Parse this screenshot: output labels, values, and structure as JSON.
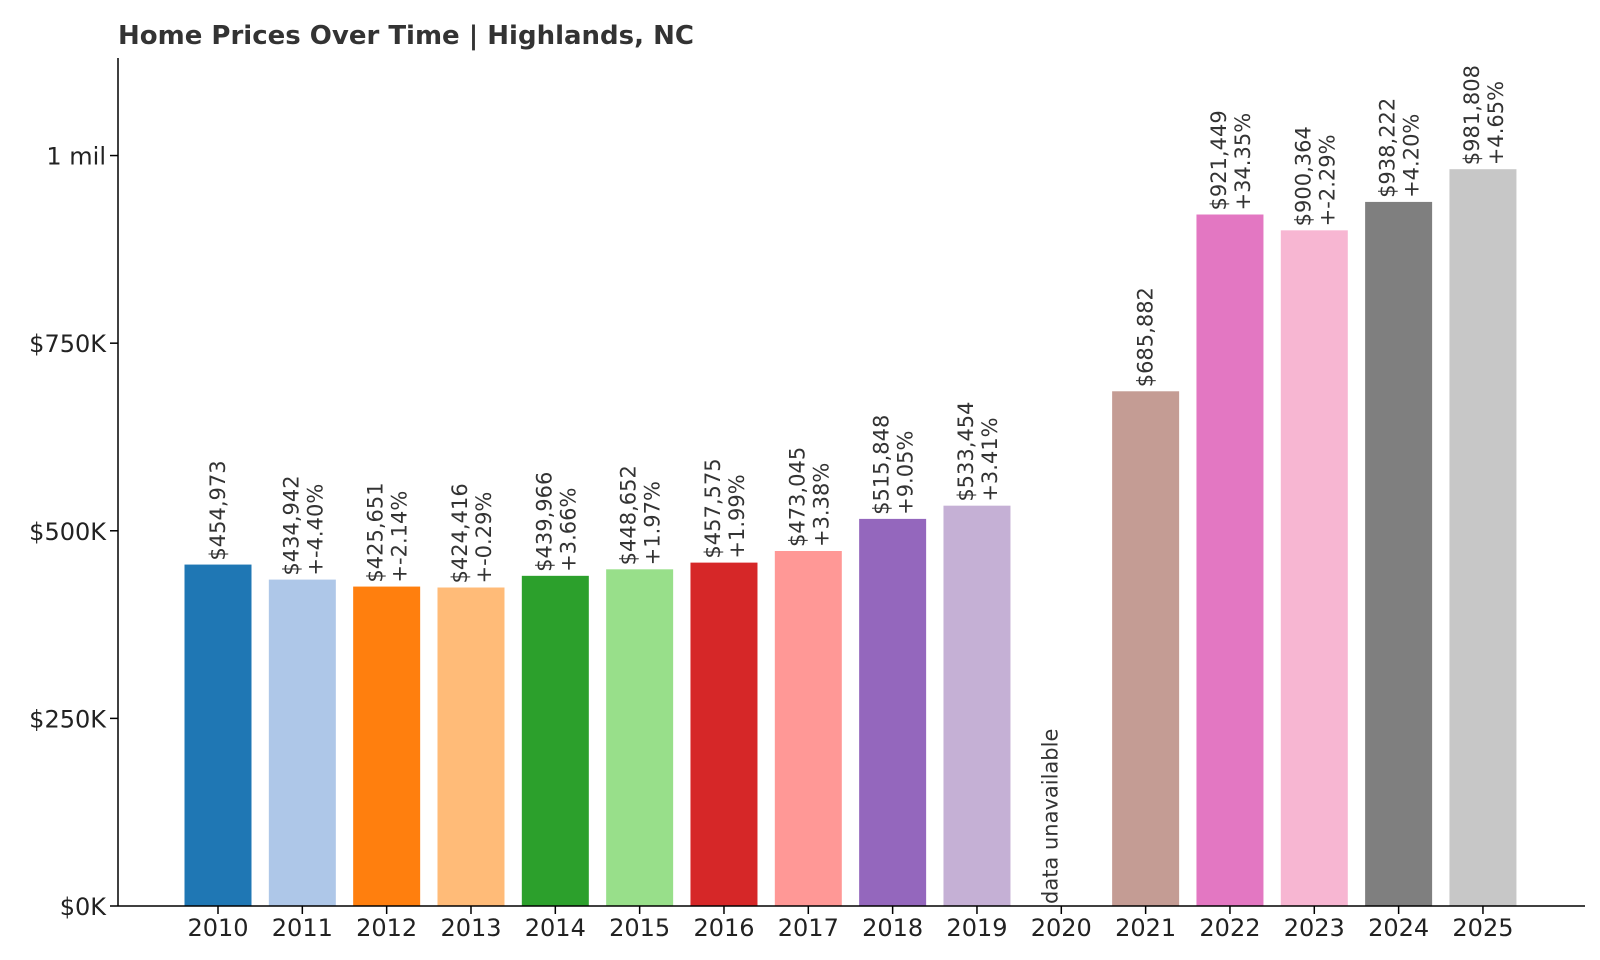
{
  "chart_data": {
    "type": "bar",
    "title": "Home Prices Over Time | Highlands, NC",
    "xlabel": "",
    "ylabel": "",
    "ylim": [
      0,
      1130000
    ],
    "grid": false,
    "yticks": [
      {
        "value": 0,
        "label": "$0K"
      },
      {
        "value": 250000,
        "label": "$250K"
      },
      {
        "value": 500000,
        "label": "$500K"
      },
      {
        "value": 750000,
        "label": "$750K"
      },
      {
        "value": 1000000,
        "label": "1 mil"
      }
    ],
    "categories": [
      "2010",
      "2011",
      "2012",
      "2013",
      "2014",
      "2015",
      "2016",
      "2017",
      "2018",
      "2019",
      "2020",
      "2021",
      "2022",
      "2023",
      "2024",
      "2025"
    ],
    "values": [
      454973,
      434942,
      425651,
      424416,
      439966,
      448652,
      457575,
      473045,
      515848,
      533454,
      null,
      685882,
      921449,
      900364,
      938222,
      981808
    ],
    "value_labels": [
      "$454,973",
      "$434,942",
      "$425,651",
      "$424,416",
      "$439,966",
      "$448,652",
      "$457,575",
      "$473,045",
      "$515,848",
      "$533,454",
      "",
      "$685,882",
      "$921,449",
      "$900,364",
      "$938,222",
      "$981,808"
    ],
    "change_labels": [
      "",
      "+-4.40%",
      "+-2.14%",
      "+-0.29%",
      "+3.66%",
      "+1.97%",
      "+1.99%",
      "+3.38%",
      "+9.05%",
      "+3.41%",
      "",
      "",
      "+34.35%",
      "+-2.29%",
      "+4.20%",
      "+4.65%"
    ],
    "missing_label": "data unavailable",
    "colors": [
      "#1f77b4",
      "#aec7e8",
      "#ff7f0e",
      "#ffbb78",
      "#2ca02c",
      "#98df8a",
      "#d62728",
      "#ff9896",
      "#9467bd",
      "#c5b0d5",
      "#8c564b",
      "#c49c94",
      "#e377c2",
      "#f7b6d2",
      "#7f7f7f",
      "#c7c7c7"
    ]
  }
}
